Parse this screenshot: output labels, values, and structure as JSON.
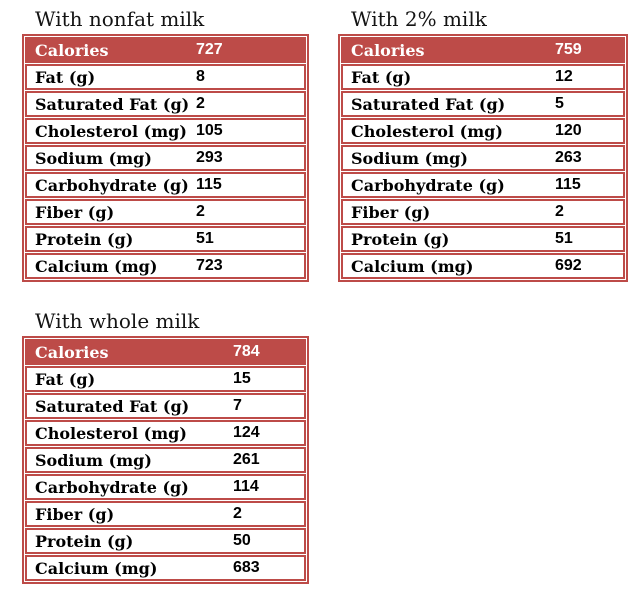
{
  "page": {
    "accent_red": "#bd4b48",
    "background": "#ffffff"
  },
  "tables": [
    {
      "title": "With nonfat milk",
      "header": {
        "label": "Calories",
        "value": "727"
      },
      "rows": [
        {
          "label": "Fat (g)",
          "value": "8"
        },
        {
          "label": "Saturated Fat (g)",
          "value": "2"
        },
        {
          "label": "Cholesterol (mg)",
          "value": "105"
        },
        {
          "label": "Sodium (mg)",
          "value": "293"
        },
        {
          "label": "Carbohydrate (g)",
          "value": "115"
        },
        {
          "label": "Fiber (g)",
          "value": "2"
        },
        {
          "label": "Protein (g)",
          "value": "51"
        },
        {
          "label": "Calcium (mg)",
          "value": "723"
        }
      ]
    },
    {
      "title": "With 2% milk",
      "header": {
        "label": "Calories",
        "value": "759"
      },
      "rows": [
        {
          "label": "Fat (g)",
          "value": "12"
        },
        {
          "label": "Saturated Fat (g)",
          "value": "5"
        },
        {
          "label": "Cholesterol (mg)",
          "value": "120"
        },
        {
          "label": "Sodium (mg)",
          "value": "263"
        },
        {
          "label": "Carbohydrate (g)",
          "value": "115"
        },
        {
          "label": "Fiber (g)",
          "value": "2"
        },
        {
          "label": "Protein (g)",
          "value": "51"
        },
        {
          "label": "Calcium (mg)",
          "value": "692"
        }
      ]
    },
    {
      "title": "With whole milk",
      "header": {
        "label": "Calories",
        "value": "784"
      },
      "rows": [
        {
          "label": "Fat (g)",
          "value": "15"
        },
        {
          "label": "Saturated Fat (g)",
          "value": "7"
        },
        {
          "label": "Cholesterol (mg)",
          "value": "124"
        },
        {
          "label": "Sodium (mg)",
          "value": "261"
        },
        {
          "label": "Carbohydrate (g)",
          "value": "114"
        },
        {
          "label": "Fiber (g)",
          "value": "2"
        },
        {
          "label": "Protein (g)",
          "value": "50"
        },
        {
          "label": "Calcium (mg)",
          "value": "683"
        }
      ]
    }
  ]
}
